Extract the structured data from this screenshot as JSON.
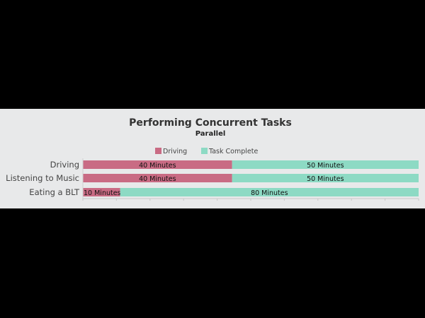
{
  "chart_data": {
    "type": "bar",
    "orientation": "horizontal",
    "stacked": true,
    "title": "Performing Concurrent Tasks",
    "subtitle": "Parallel",
    "categories": [
      "Driving",
      "Listening to Music",
      "Eating a BLT"
    ],
    "series": [
      {
        "name": "Driving",
        "color": "#c96b84",
        "values": [
          40,
          40,
          10
        ],
        "labels": [
          "40 Minutes",
          "40 Minutes",
          "10 Minutes"
        ]
      },
      {
        "name": "Task Complete",
        "color": "#8ddac4",
        "values": [
          50,
          50,
          80
        ],
        "labels": [
          "50 Minutes",
          "50 Minutes",
          "80 Minutes"
        ]
      }
    ],
    "xlim": [
      0,
      90
    ],
    "legend": "top-center",
    "grid": false
  }
}
